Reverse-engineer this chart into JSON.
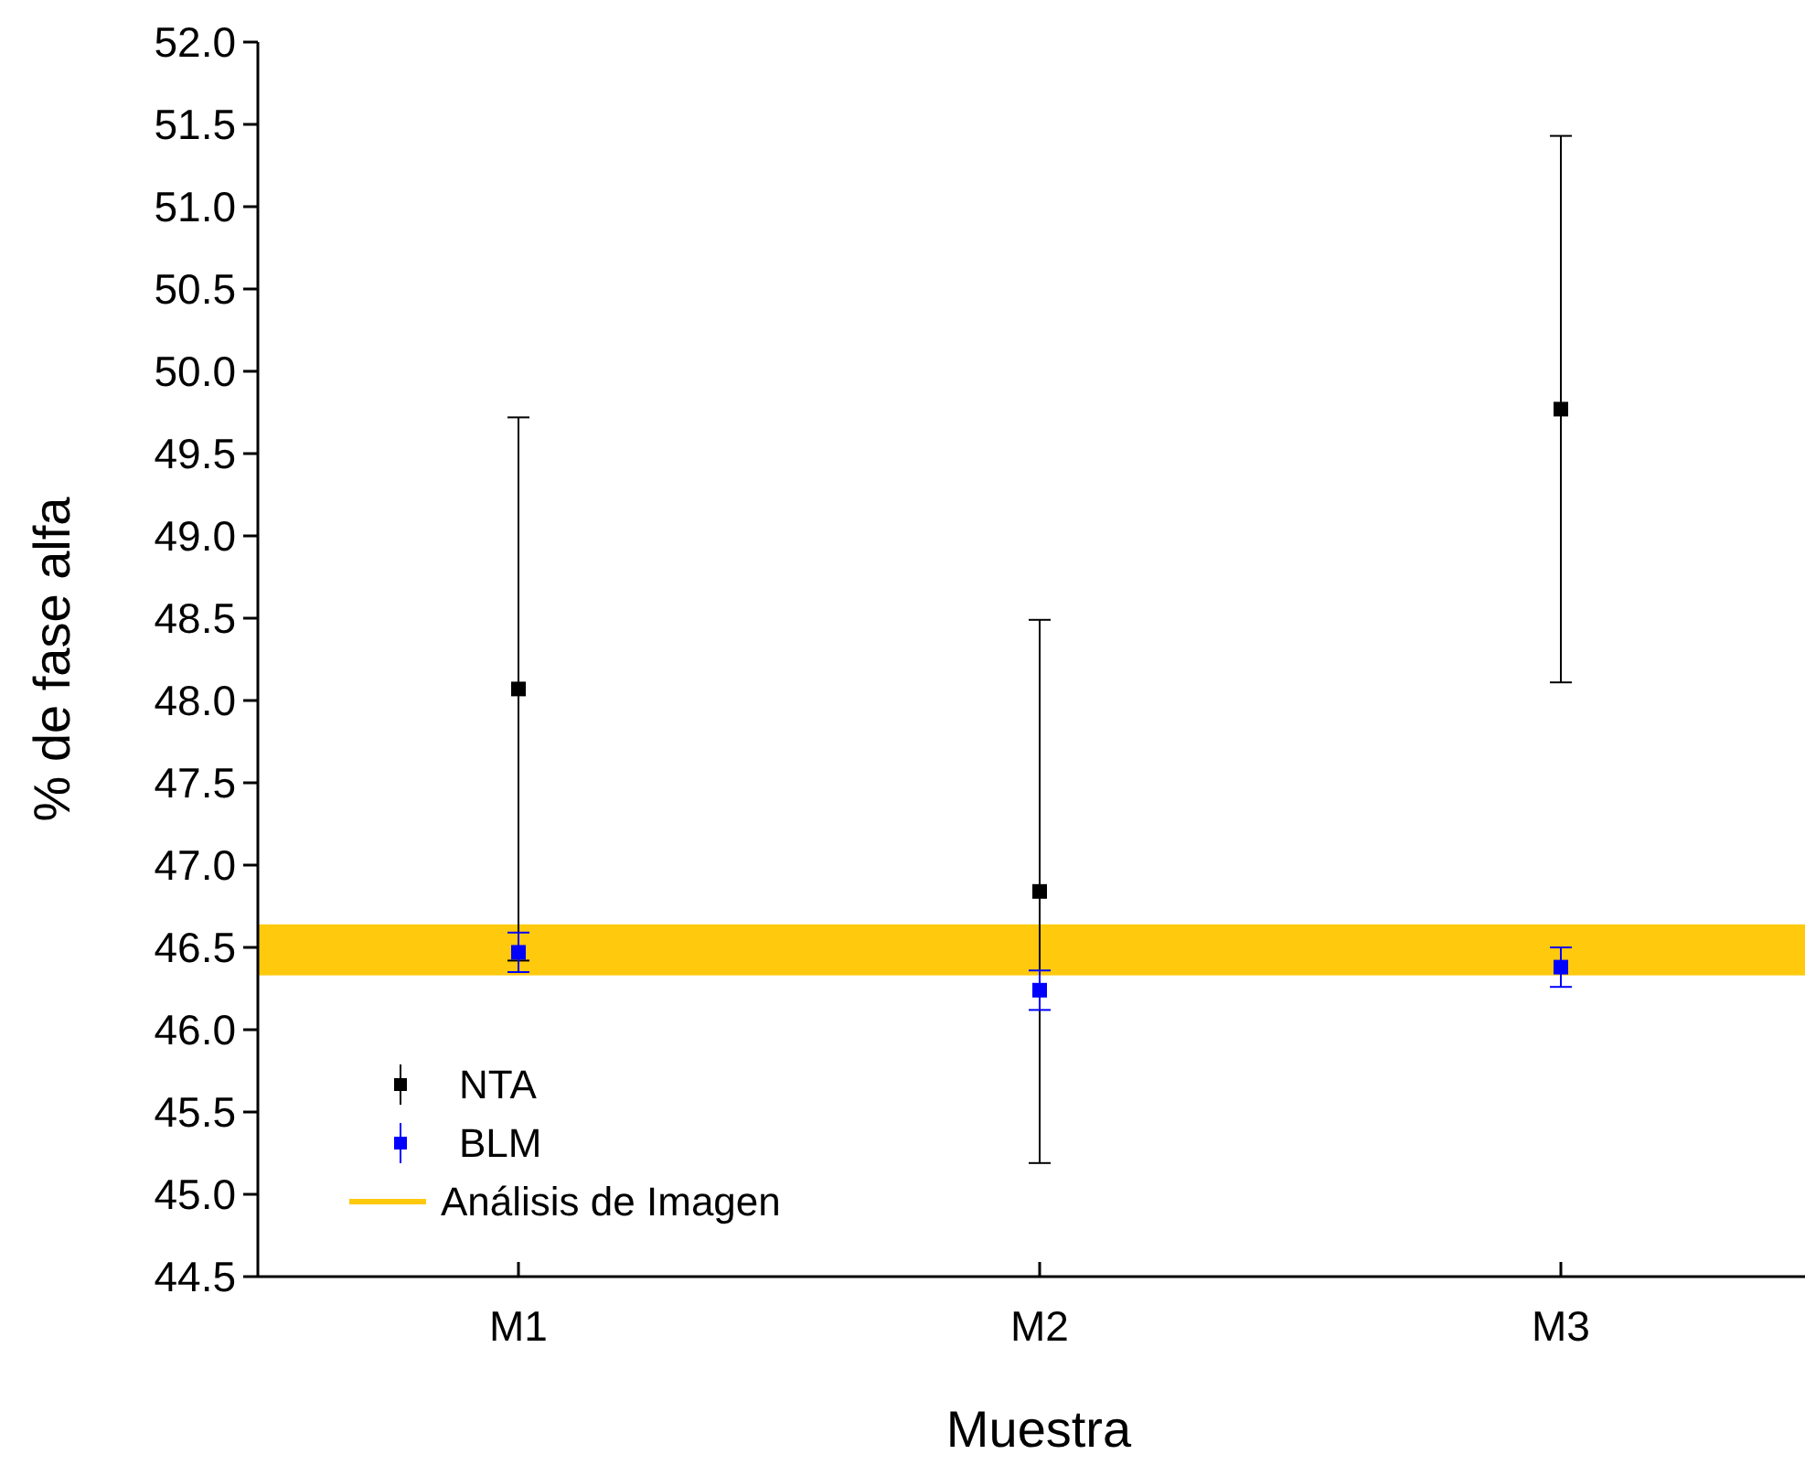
{
  "chart_data": {
    "type": "scatter",
    "xlabel": "Muestra",
    "ylabel": "% de fase alfa",
    "categories": [
      "M1",
      "M2",
      "M3"
    ],
    "series": [
      {
        "name": "NTA",
        "color": "#000000",
        "values": [
          48.07,
          46.84,
          49.77
        ],
        "errors": [
          1.65,
          1.65,
          1.66
        ]
      },
      {
        "name": "BLM",
        "color": "#0000ff",
        "values": [
          46.47,
          46.24,
          46.38
        ],
        "errors": [
          0.12,
          0.12,
          0.12
        ]
      }
    ],
    "bands": [
      {
        "axis": "y",
        "from": 46.33,
        "to": 46.64,
        "label": "Análisis de Imagen",
        "color": "#ffc90e"
      }
    ],
    "ylim": [
      44.5,
      52.0
    ],
    "yticks": [
      {
        "value": 44.5,
        "label": "44.5"
      },
      {
        "value": 45,
        "label": "45.0"
      },
      {
        "value": 45.5,
        "label": "45.5"
      },
      {
        "value": 46,
        "label": "46.0"
      },
      {
        "value": 46.5,
        "label": "46.5"
      },
      {
        "value": 47,
        "label": "47.0"
      },
      {
        "value": 47.5,
        "label": "47.5"
      },
      {
        "value": 48,
        "label": "48.0"
      },
      {
        "value": 48.5,
        "label": "48.5"
      },
      {
        "value": 49,
        "label": "49.0"
      },
      {
        "value": 49.5,
        "label": "49.5"
      },
      {
        "value": 50,
        "label": "50.0"
      },
      {
        "value": 50.5,
        "label": "50.5"
      },
      {
        "value": 51,
        "label": "51.0"
      },
      {
        "value": 51.5,
        "label": "51.5"
      },
      {
        "value": 52,
        "label": "52.0"
      }
    ],
    "marker": "square",
    "legend": "bottom left",
    "grid": false
  }
}
